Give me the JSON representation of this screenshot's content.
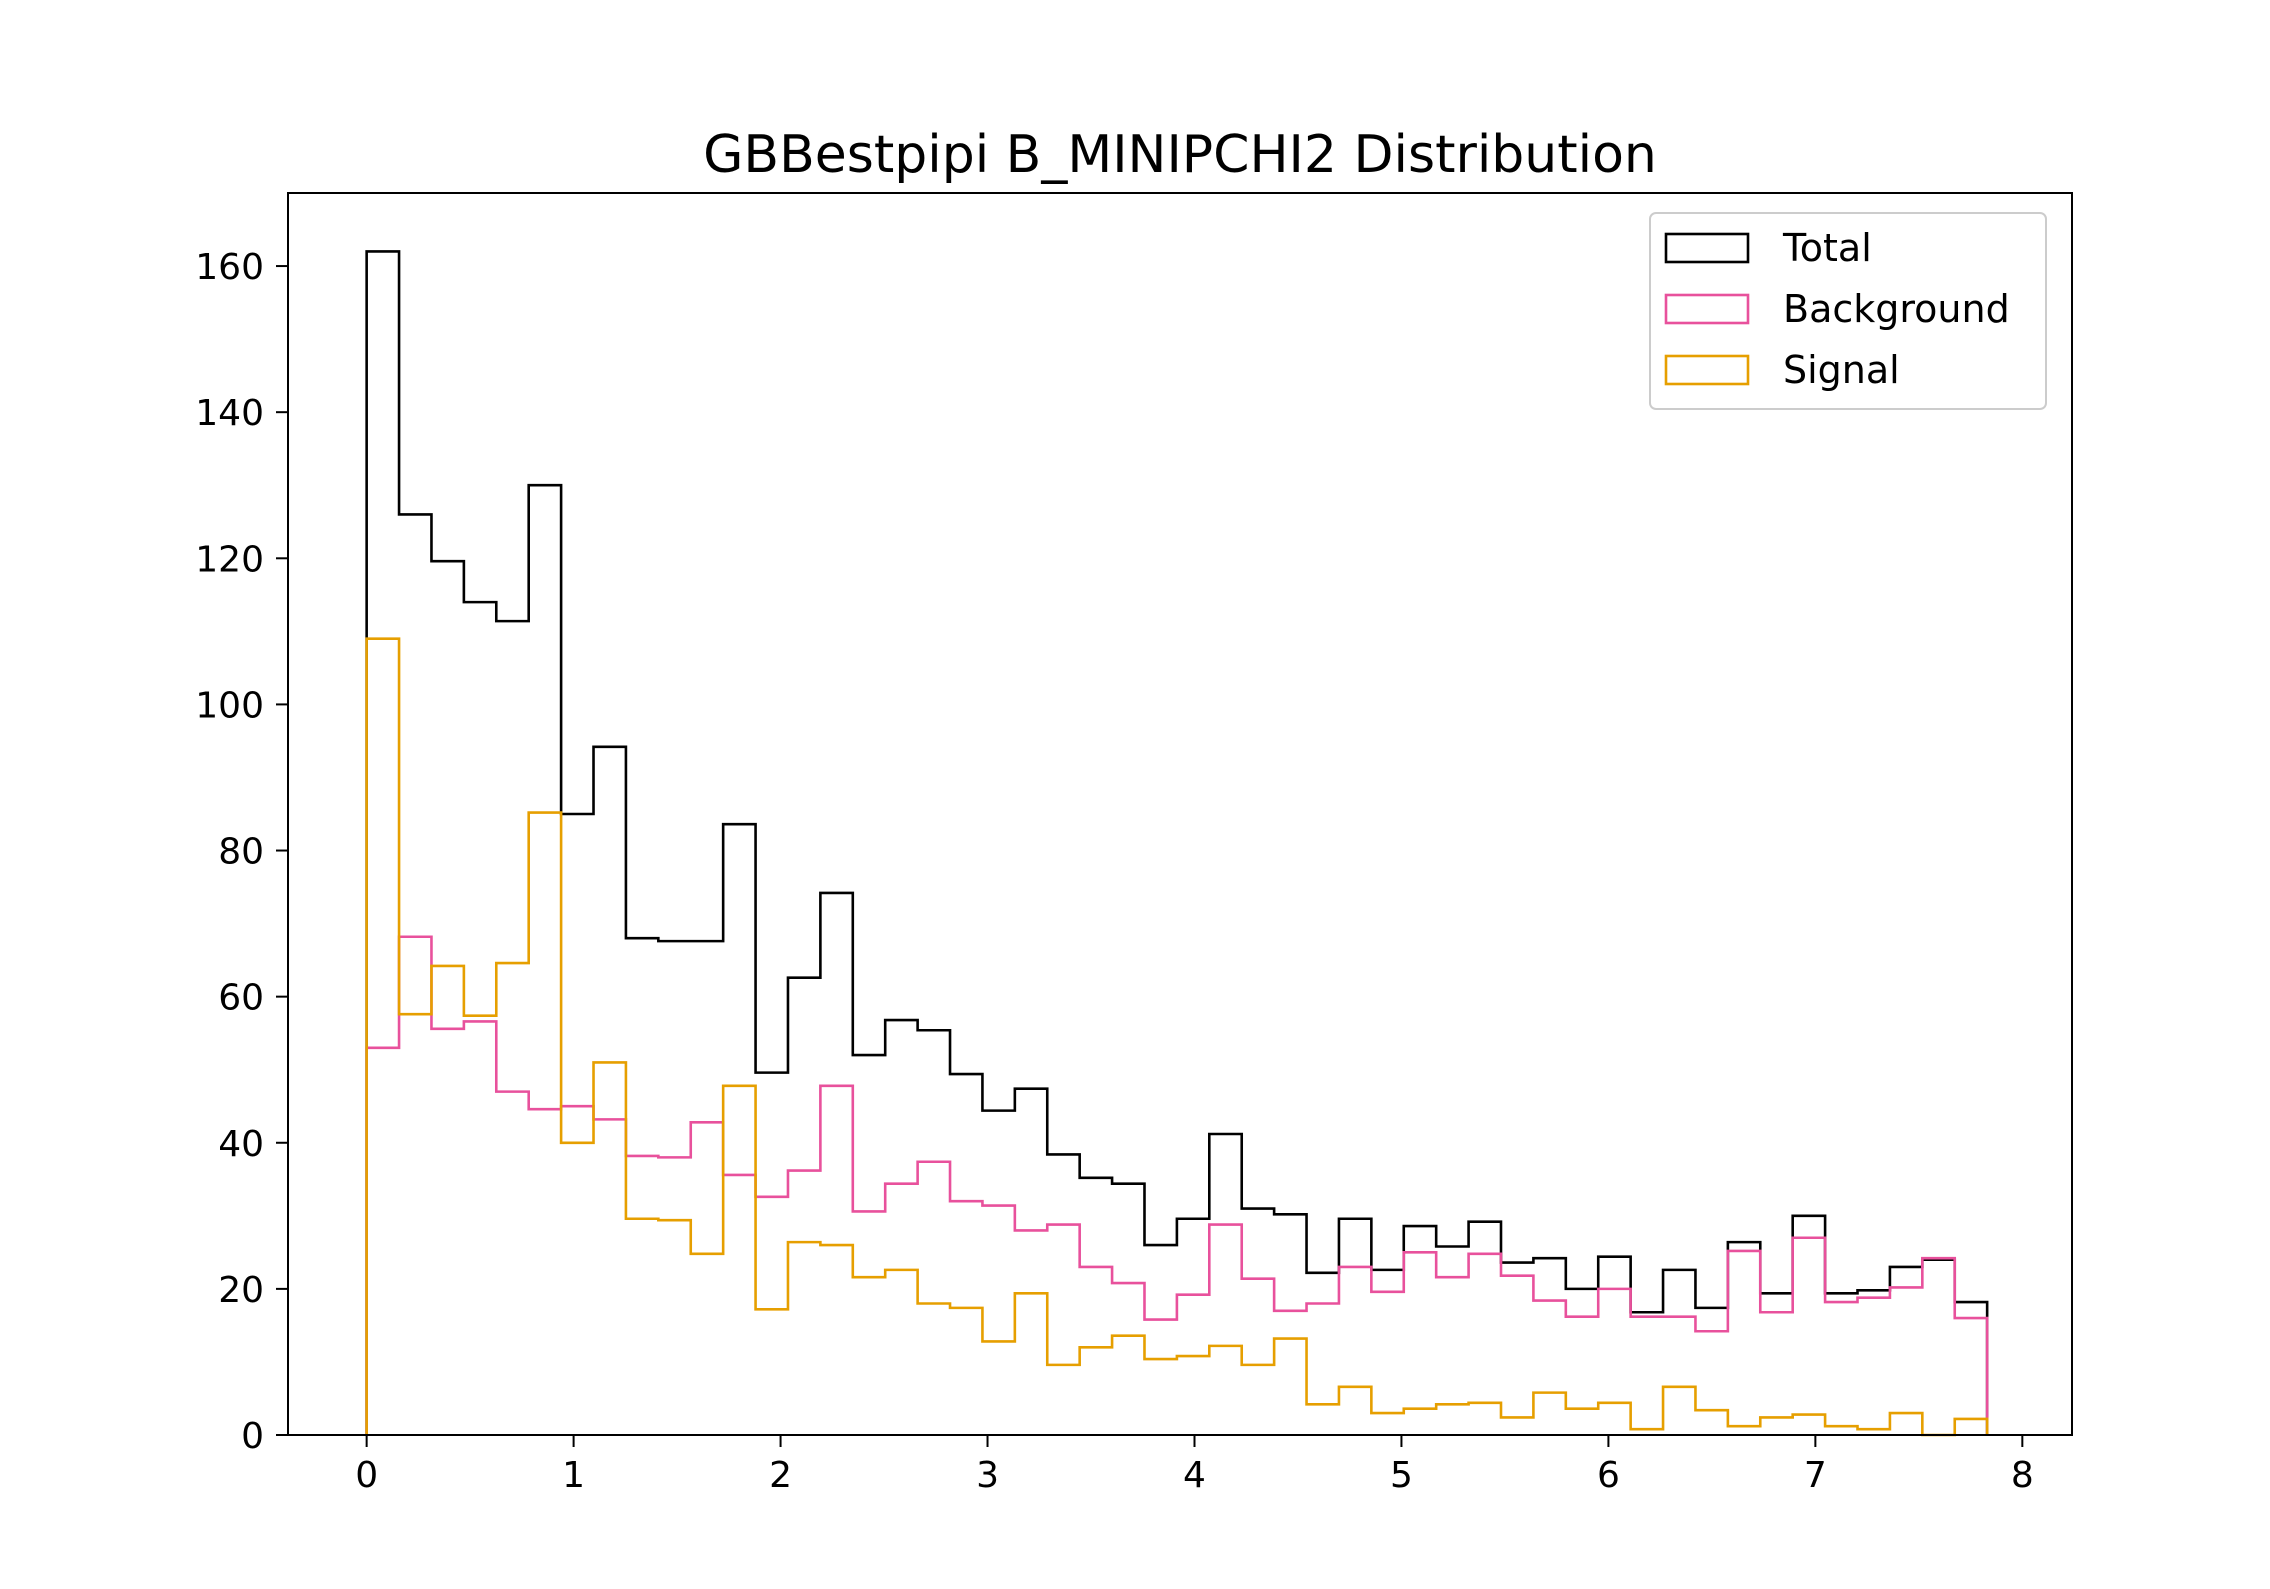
{
  "chart_data": {
    "type": "histogram",
    "title": "GBBestpipi B_MINIPCHI2 Distribution",
    "xlabel": "",
    "ylabel": "",
    "xlim": [
      -0.38,
      8.24
    ],
    "ylim": [
      0,
      170
    ],
    "x_ticks": [
      0,
      1,
      2,
      3,
      4,
      5,
      6,
      7,
      8
    ],
    "y_ticks": [
      0,
      20,
      40,
      60,
      80,
      100,
      120,
      140,
      160
    ],
    "bin_start": 0,
    "bin_width": 0.1566,
    "n_bins": 50,
    "legend_position": "top-right",
    "series": [
      {
        "name": "Total",
        "color": "#000000",
        "values": [
          162,
          126,
          119.6,
          114,
          111.4,
          130,
          85,
          94.2,
          68,
          67.6,
          67.6,
          83.6,
          49.6,
          62.6,
          74.2,
          52,
          56.8,
          55.4,
          49.4,
          44.4,
          47.4,
          38.4,
          35.2,
          34.4,
          26,
          29.6,
          41.2,
          31,
          30.2,
          22.2,
          29.6,
          22.6,
          28.6,
          25.8,
          29.2,
          23.6,
          24.2,
          20,
          24.4,
          16.8,
          22.6,
          17.4,
          26.4,
          19.4,
          30,
          19.4,
          19.8,
          23,
          24,
          18.2
        ]
      },
      {
        "name": "Background",
        "color": "#e8519c",
        "values": [
          53,
          68.2,
          55.6,
          56.6,
          47,
          44.6,
          45,
          43.2,
          38.2,
          38,
          42.8,
          35.6,
          32.6,
          36.2,
          47.8,
          30.6,
          34.4,
          37.4,
          32,
          31.4,
          28,
          28.8,
          23,
          20.8,
          15.8,
          19.2,
          28.8,
          21.4,
          17,
          18,
          23,
          19.6,
          25,
          21.6,
          24.8,
          21.8,
          18.4,
          16.2,
          20,
          16.2,
          16.2,
          14.2,
          25.2,
          16.8,
          27,
          18.2,
          18.8,
          20.2,
          24.2,
          16
        ]
      },
      {
        "name": "Signal",
        "color": "#e69f00",
        "values": [
          109,
          57.6,
          64.2,
          57.4,
          64.6,
          85.2,
          40,
          51,
          29.6,
          29.4,
          24.8,
          47.8,
          17.2,
          26.4,
          26,
          21.6,
          22.6,
          18,
          17.4,
          12.8,
          19.4,
          9.6,
          12,
          13.6,
          10.4,
          10.8,
          12.2,
          9.6,
          13.2,
          4.2,
          6.6,
          3,
          3.6,
          4.2,
          4.4,
          2.4,
          5.8,
          3.6,
          4.4,
          0.8,
          6.6,
          3.4,
          1.2,
          2.4,
          2.8,
          1.2,
          0.8,
          3,
          0,
          2.2
        ]
      }
    ]
  }
}
